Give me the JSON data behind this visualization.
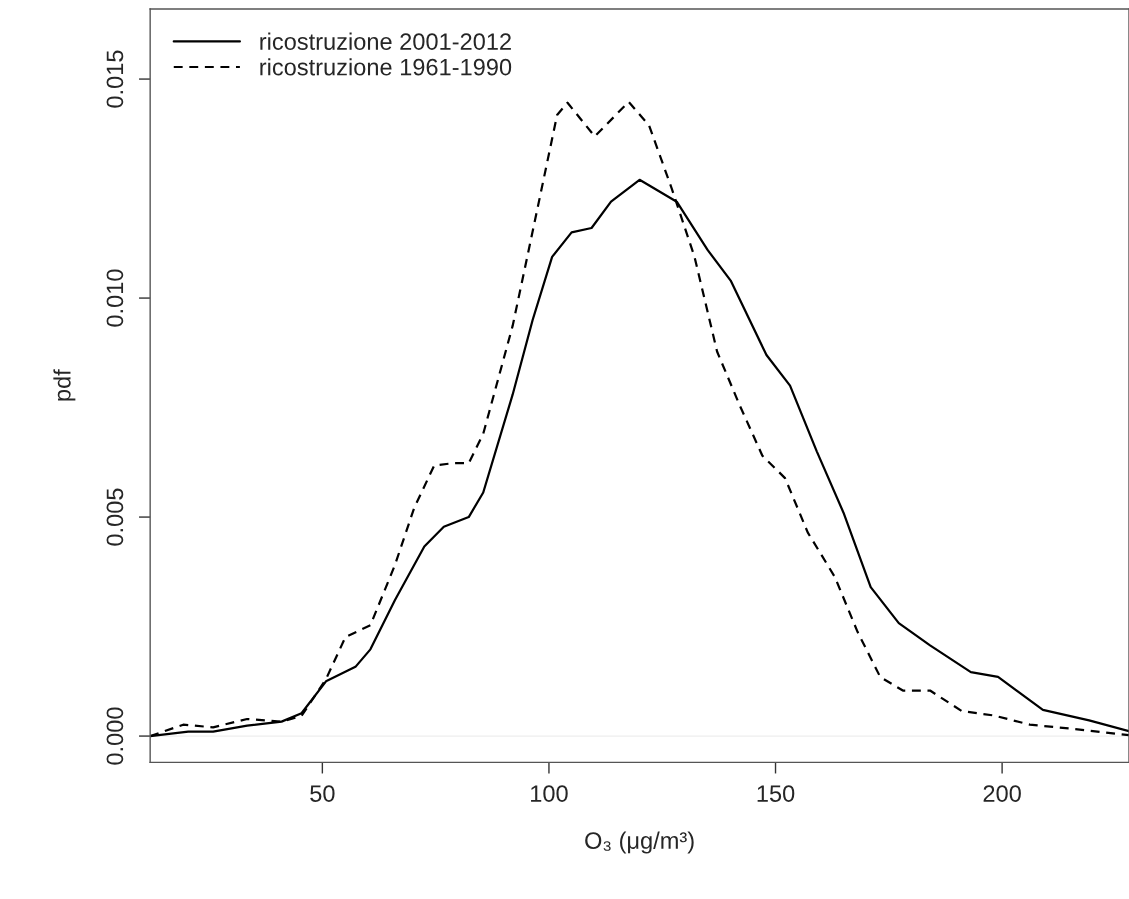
{
  "chart_data": {
    "type": "line",
    "xlabel": "O₃ (μg/m³)",
    "ylabel": "pdf",
    "xlim": [
      12,
      228
    ],
    "ylim": [
      -0.0006,
      0.0166
    ],
    "xticks": [
      50,
      100,
      150,
      200
    ],
    "yticks": [
      {
        "value": 0,
        "label": "0.000"
      },
      {
        "value": 0.005,
        "label": "0.005"
      },
      {
        "value": 0.01,
        "label": "0.010"
      },
      {
        "value": 0.015,
        "label": "0.015"
      }
    ],
    "grid": false,
    "legend": "top left",
    "marker": "none",
    "ref_lines": [
      {
        "axis": "y",
        "value": 0,
        "color": "#eeeeee",
        "line_style": "solid"
      }
    ],
    "series": [
      {
        "name": "ricostruzione 2001-2012",
        "color": "#000000",
        "line_style": "solid",
        "x": [
          12,
          20.4,
          25.9,
          33.4,
          41,
          45.4,
          50.8,
          57.3,
          60.6,
          66,
          72.5,
          76.8,
          82.3,
          85.5,
          92,
          96.4,
          100.7,
          105,
          109.4,
          113.7,
          120,
          128.2,
          135,
          140.1,
          148,
          153.2,
          159.1,
          165,
          171,
          177.2,
          184.1,
          193.1,
          199.1,
          209,
          219.2,
          228
        ],
        "values": [
          0,
          0.0001,
          0.0001,
          0.00024,
          0.00033,
          0.00052,
          0.00125,
          0.00158,
          0.00198,
          0.0031,
          0.00433,
          0.00478,
          0.005,
          0.00556,
          0.0078,
          0.0095,
          0.01094,
          0.0115,
          0.0116,
          0.0122,
          0.0127,
          0.0122,
          0.0111,
          0.0104,
          0.0087,
          0.008,
          0.0065,
          0.0051,
          0.0034,
          0.00258,
          0.00207,
          0.00146,
          0.00135,
          0.0006,
          0.00036,
          0.00011
        ]
      },
      {
        "name": "ricostruzione 1961-1990",
        "color": "#000000",
        "line_style": "dashed",
        "x": [
          12,
          19.3,
          25.9,
          33.4,
          41,
          45.4,
          50.8,
          55.1,
          60.6,
          66,
          70.3,
          74.7,
          78.9,
          82.3,
          85.5,
          92,
          97.5,
          101.8,
          104.1,
          110.1,
          117.6,
          122.1,
          127.1,
          132.1,
          137.1,
          142.1,
          147.1,
          152.1,
          157.1,
          163.1,
          168.1,
          173.1,
          178.1,
          184.1,
          191.1,
          198.2,
          206.1,
          216.1,
          228
        ],
        "values": [
          0,
          0.00026,
          0.0002,
          0.00039,
          0.00033,
          0.00046,
          0.0013,
          0.00226,
          0.00253,
          0.0039,
          0.00522,
          0.00618,
          0.00623,
          0.00623,
          0.0069,
          0.00937,
          0.01206,
          0.01418,
          0.01446,
          0.01369,
          0.01448,
          0.01394,
          0.0125,
          0.01095,
          0.00878,
          0.00755,
          0.0064,
          0.00589,
          0.00465,
          0.00363,
          0.00238,
          0.00135,
          0.00104,
          0.00104,
          0.00057,
          0.00047,
          0.00026,
          0.00016,
          2e-05
        ]
      }
    ]
  }
}
